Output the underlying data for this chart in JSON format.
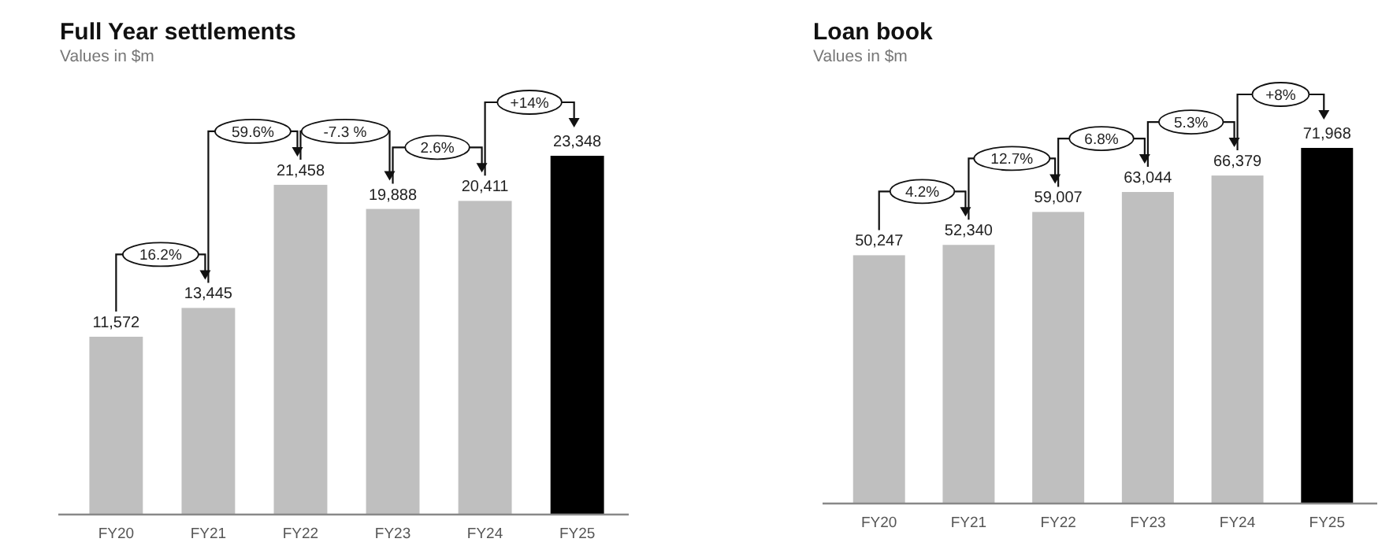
{
  "chart_data": [
    {
      "type": "bar",
      "title": "Full Year settlements",
      "subtitle": "Values in $m",
      "categories": [
        "FY20",
        "FY21",
        "FY22",
        "FY23",
        "FY24",
        "FY25"
      ],
      "values": [
        11572,
        13445,
        21458,
        19888,
        20411,
        23348
      ],
      "colors": [
        "#bfbfbf",
        "#bfbfbf",
        "#bfbfbf",
        "#bfbfbf",
        "#bfbfbf",
        "#000000"
      ],
      "annotations": [
        "16.2%",
        "59.6%",
        "-7.3 %",
        "2.6%",
        "+14%"
      ],
      "value_labels": [
        "11,572",
        "13,445",
        "21,458",
        "19,888",
        "20,411",
        "23,348"
      ],
      "tick_labels": "x"
    },
    {
      "type": "bar",
      "title": "Loan book",
      "subtitle": "Values in $m",
      "categories": [
        "FY20",
        "FY21",
        "FY22",
        "FY23",
        "FY24",
        "FY25"
      ],
      "values": [
        50247,
        52340,
        59007,
        63044,
        66379,
        71968
      ],
      "colors": [
        "#bfbfbf",
        "#bfbfbf",
        "#bfbfbf",
        "#bfbfbf",
        "#bfbfbf",
        "#000000"
      ],
      "annotations": [
        "4.2%",
        "12.7%",
        "6.8%",
        "5.3%",
        "+8%"
      ],
      "value_labels": [
        "50,247",
        "52,340",
        "59,007",
        "63,044",
        "66,379",
        "71,968"
      ],
      "tick_labels": "x"
    }
  ]
}
